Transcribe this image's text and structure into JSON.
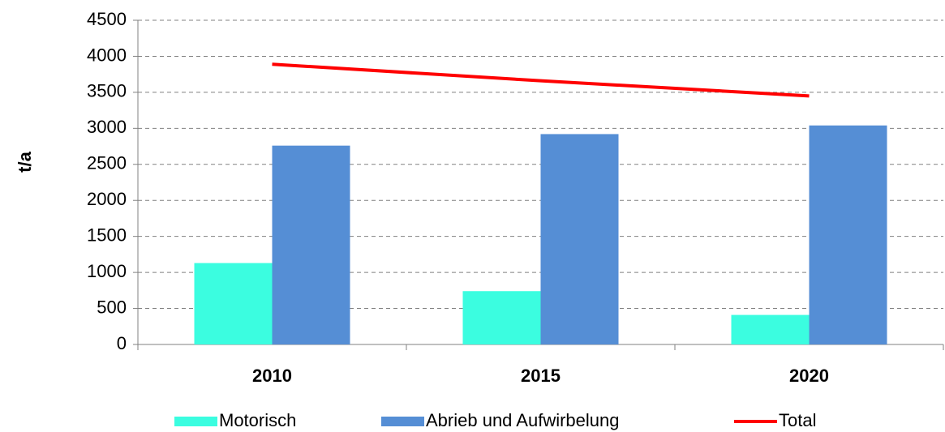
{
  "chart_data": {
    "type": "bar",
    "y_label": "t/a",
    "categories": [
      "2010",
      "2015",
      "2020"
    ],
    "series": [
      {
        "name": "Motorisch",
        "color": "#3bfde0",
        "values": [
          1130,
          740,
          410
        ]
      },
      {
        "name": "Abrieb und Aufwirbelung",
        "color": "#558ed5",
        "values": [
          2760,
          2920,
          3040
        ]
      },
      {
        "name": "Total",
        "color": "#ff0000",
        "type": "line",
        "values": [
          3890,
          3660,
          3450
        ]
      }
    ],
    "ylim": [
      0,
      4500
    ],
    "yticks": [
      0,
      500,
      1000,
      1500,
      2000,
      2500,
      3000,
      3500,
      4000,
      4500
    ],
    "grid": true,
    "legend": "bottom"
  }
}
